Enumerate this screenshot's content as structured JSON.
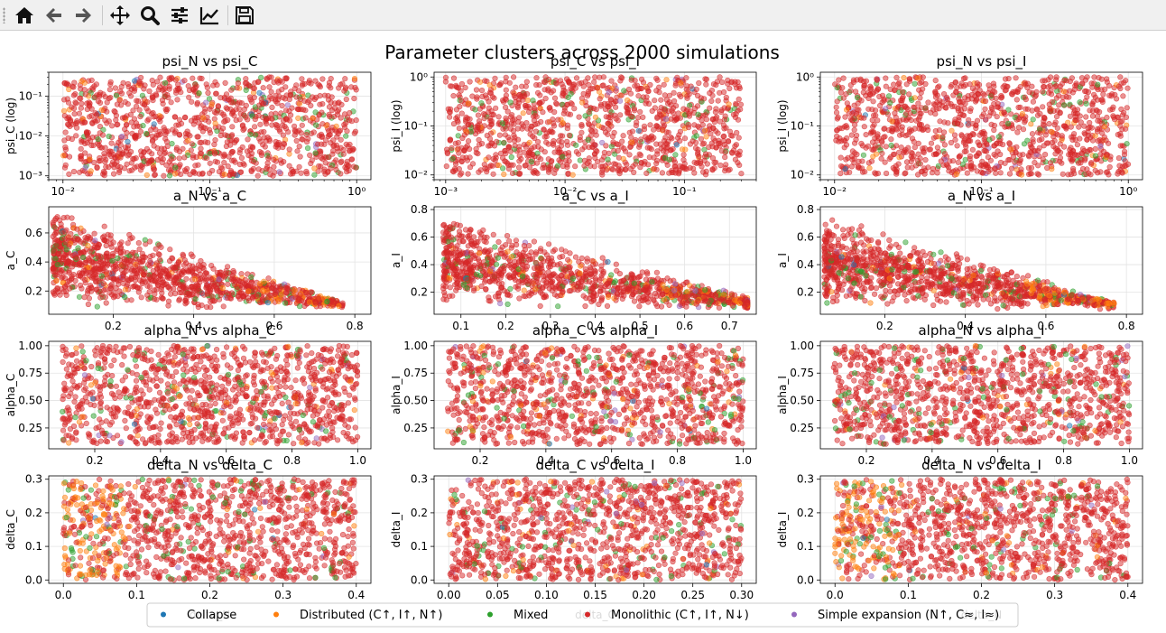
{
  "toolbar": {
    "buttons": [
      {
        "name": "home-button",
        "icon": "home-icon"
      },
      {
        "name": "back-button",
        "icon": "arrow-left-icon"
      },
      {
        "name": "forward-button",
        "icon": "arrow-right-icon"
      },
      {
        "name": "pan-button",
        "icon": "move-icon"
      },
      {
        "name": "zoom-button",
        "icon": "magnifier-icon"
      },
      {
        "name": "configure-subplots-button",
        "icon": "sliders-icon"
      },
      {
        "name": "edit-axes-button",
        "icon": "line-chart-icon"
      },
      {
        "name": "save-button",
        "icon": "floppy-disk-icon"
      }
    ]
  },
  "figure": {
    "title": "Parameter clusters across 2000 simulations",
    "legend": [
      {
        "label": "Collapse",
        "color": "#1f77b4"
      },
      {
        "label": "Distributed (C↑, I↑, N↑)",
        "color": "#ff7f0e"
      },
      {
        "label": "Mixed",
        "color": "#2ca02c"
      },
      {
        "label": "Monolithic (C↑, I↑, N↓)",
        "color": "#d62728"
      },
      {
        "label": "Simple expansion (N↑, C≈, I≈)",
        "color": "#9467bd"
      }
    ]
  },
  "chart_data": [
    {
      "type": "scatter",
      "title": "psi_N vs psi_C",
      "xlabel": "",
      "ylabel": "psi_C (log)",
      "xscale": "log",
      "yscale": "log",
      "xlim": [
        0.008,
        1.25
      ],
      "ylim": [
        0.0008,
        0.4
      ],
      "xticks": [
        0.01,
        0.1,
        1
      ],
      "xticklabels": [
        "10⁻²",
        "10⁻¹",
        "10⁰"
      ],
      "yticks": [
        0.001,
        0.01,
        0.1
      ],
      "yticklabels": [
        "10⁻³",
        "10⁻²",
        "10⁻¹"
      ],
      "x_range": [
        0.01,
        1
      ],
      "y_range": [
        0.001,
        0.3
      ],
      "grid": true
    },
    {
      "type": "scatter",
      "title": "psi_C vs psi_I",
      "xlabel": "",
      "ylabel": "psi_I (log)",
      "xscale": "log",
      "yscale": "log",
      "xlim": [
        0.0008,
        0.4
      ],
      "ylim": [
        0.008,
        1.25
      ],
      "xticks": [
        0.001,
        0.01,
        0.1
      ],
      "xticklabels": [
        "10⁻³",
        "10⁻²",
        "10⁻¹"
      ],
      "yticks": [
        0.01,
        0.1,
        1
      ],
      "yticklabels": [
        "10⁻²",
        "10⁻¹",
        "10⁰"
      ],
      "x_range": [
        0.001,
        0.3
      ],
      "y_range": [
        0.01,
        1
      ],
      "grid": true
    },
    {
      "type": "scatter",
      "title": "psi_N vs psi_I",
      "xlabel": "",
      "ylabel": "psi_I (log)",
      "xscale": "log",
      "yscale": "log",
      "xlim": [
        0.008,
        1.25
      ],
      "ylim": [
        0.008,
        1.25
      ],
      "xticks": [
        0.01,
        0.1,
        1
      ],
      "xticklabels": [
        "10⁻²",
        "10⁻¹",
        "10⁰"
      ],
      "yticks": [
        0.01,
        0.1,
        1
      ],
      "yticklabels": [
        "10⁻²",
        "10⁻¹",
        "10⁰"
      ],
      "x_range": [
        0.01,
        1
      ],
      "y_range": [
        0.01,
        1
      ],
      "grid": true
    },
    {
      "type": "scatter",
      "title": "a_N vs a_C",
      "xlabel": "",
      "ylabel": "a_C",
      "xscale": "linear",
      "yscale": "linear",
      "xlim": [
        0.04,
        0.84
      ],
      "ylim": [
        0.04,
        0.78
      ],
      "xticks": [
        0.2,
        0.4,
        0.6,
        0.8
      ],
      "xticklabels": [
        "0.2",
        "0.4",
        "0.6",
        "0.8"
      ],
      "yticks": [
        0.2,
        0.4,
        0.6
      ],
      "yticklabels": [
        "0.2",
        "0.4",
        "0.6"
      ],
      "shape": "triangle",
      "x_range": [
        0.05,
        0.82
      ],
      "y_range": [
        0.07,
        0.76
      ],
      "grid": true
    },
    {
      "type": "scatter",
      "title": "a_C vs a_I",
      "xlabel": "",
      "ylabel": "a_I",
      "xscale": "linear",
      "yscale": "linear",
      "xlim": [
        0.04,
        0.76
      ],
      "ylim": [
        0.04,
        0.82
      ],
      "xticks": [
        0.1,
        0.2,
        0.3,
        0.4,
        0.5,
        0.6,
        0.7
      ],
      "xticklabels": [
        "0.1",
        "0.2",
        "0.3",
        "0.4",
        "0.5",
        "0.6",
        "0.7"
      ],
      "yticks": [
        0.2,
        0.4,
        0.6,
        0.8
      ],
      "yticklabels": [
        "0.2",
        "0.4",
        "0.6",
        "0.8"
      ],
      "shape": "triangle",
      "x_range": [
        0.06,
        0.74
      ],
      "y_range": [
        0.07,
        0.79
      ],
      "grid": true
    },
    {
      "type": "scatter",
      "title": "a_N vs a_I",
      "xlabel": "",
      "ylabel": "a_I",
      "xscale": "linear",
      "yscale": "linear",
      "xlim": [
        0.04,
        0.84
      ],
      "ylim": [
        0.04,
        0.82
      ],
      "xticks": [
        0.2,
        0.4,
        0.6,
        0.8
      ],
      "xticklabels": [
        "0.2",
        "0.4",
        "0.6",
        "0.8"
      ],
      "yticks": [
        0.2,
        0.4,
        0.6,
        0.8
      ],
      "yticklabels": [
        "0.2",
        "0.4",
        "0.6",
        "0.8"
      ],
      "shape": "triangle",
      "x_range": [
        0.05,
        0.82
      ],
      "y_range": [
        0.07,
        0.79
      ],
      "grid": true
    },
    {
      "type": "scatter",
      "title": "alpha_N vs alpha_C",
      "xlabel": "",
      "ylabel": "alpha_C",
      "xscale": "linear",
      "yscale": "linear",
      "xlim": [
        0.06,
        1.04
      ],
      "ylim": [
        0.06,
        1.04
      ],
      "xticks": [
        0.2,
        0.4,
        0.6,
        0.8,
        1.0
      ],
      "xticklabels": [
        "0.2",
        "0.4",
        "0.6",
        "0.8",
        "1.0"
      ],
      "yticks": [
        0.25,
        0.5,
        0.75,
        1.0
      ],
      "yticklabels": [
        "0.25",
        "0.50",
        "0.75",
        "1.00"
      ],
      "x_range": [
        0.1,
        1
      ],
      "y_range": [
        0.1,
        1
      ],
      "grid": true
    },
    {
      "type": "scatter",
      "title": "alpha_C vs alpha_I",
      "xlabel": "",
      "ylabel": "alpha_I",
      "xscale": "linear",
      "yscale": "linear",
      "xlim": [
        0.06,
        1.04
      ],
      "ylim": [
        0.06,
        1.04
      ],
      "xticks": [
        0.2,
        0.4,
        0.6,
        0.8,
        1.0
      ],
      "xticklabels": [
        "0.2",
        "0.4",
        "0.6",
        "0.8",
        "1.0"
      ],
      "yticks": [
        0.25,
        0.5,
        0.75,
        1.0
      ],
      "yticklabels": [
        "0.25",
        "0.50",
        "0.75",
        "1.00"
      ],
      "x_range": [
        0.1,
        1
      ],
      "y_range": [
        0.1,
        1
      ],
      "grid": true
    },
    {
      "type": "scatter",
      "title": "alpha_N vs alpha_I",
      "xlabel": "",
      "ylabel": "alpha_I",
      "xscale": "linear",
      "yscale": "linear",
      "xlim": [
        0.06,
        1.04
      ],
      "ylim": [
        0.06,
        1.04
      ],
      "xticks": [
        0.2,
        0.4,
        0.6,
        0.8,
        1.0
      ],
      "xticklabels": [
        "0.2",
        "0.4",
        "0.6",
        "0.8",
        "1.0"
      ],
      "yticks": [
        0.25,
        0.5,
        0.75,
        1.0
      ],
      "yticklabels": [
        "0.25",
        "0.50",
        "0.75",
        "1.00"
      ],
      "x_range": [
        0.1,
        1
      ],
      "y_range": [
        0.1,
        1
      ],
      "grid": true
    },
    {
      "type": "scatter",
      "title": "delta_N vs delta_C",
      "xlabel": "delta_N",
      "ylabel": "delta_C",
      "xscale": "linear",
      "yscale": "linear",
      "xlim": [
        -0.02,
        0.42
      ],
      "ylim": [
        -0.01,
        0.31
      ],
      "xticks": [
        0,
        0.1,
        0.2,
        0.3,
        0.4
      ],
      "xticklabels": [
        "0.0",
        "0.1",
        "0.2",
        "0.3",
        "0.4"
      ],
      "yticks": [
        0,
        0.1,
        0.2,
        0.3
      ],
      "yticklabels": [
        "0.0",
        "0.1",
        "0.2",
        "0.3"
      ],
      "x_range": [
        0,
        0.4
      ],
      "y_range": [
        0,
        0.3
      ],
      "grid": true
    },
    {
      "type": "scatter",
      "title": "delta_C vs delta_I",
      "xlabel": "delta_C",
      "ylabel": "delta_I",
      "xscale": "linear",
      "yscale": "linear",
      "xlim": [
        -0.015,
        0.315
      ],
      "ylim": [
        -0.01,
        0.31
      ],
      "xticks": [
        0,
        0.05,
        0.1,
        0.15,
        0.2,
        0.25,
        0.3
      ],
      "xticklabels": [
        "0.00",
        "0.05",
        "0.10",
        "0.15",
        "0.20",
        "0.25",
        "0.30"
      ],
      "yticks": [
        0,
        0.1,
        0.2,
        0.3
      ],
      "yticklabels": [
        "0.0",
        "0.1",
        "0.2",
        "0.3"
      ],
      "x_range": [
        0,
        0.3
      ],
      "y_range": [
        0,
        0.3
      ],
      "grid": true
    },
    {
      "type": "scatter",
      "title": "delta_N vs delta_I",
      "xlabel": "delta_N",
      "ylabel": "delta_I",
      "xscale": "linear",
      "yscale": "linear",
      "xlim": [
        -0.02,
        0.42
      ],
      "ylim": [
        -0.01,
        0.31
      ],
      "xticks": [
        0,
        0.1,
        0.2,
        0.3,
        0.4
      ],
      "xticklabels": [
        "0.0",
        "0.1",
        "0.2",
        "0.3",
        "0.4"
      ],
      "yticks": [
        0,
        0.1,
        0.2,
        0.3
      ],
      "yticklabels": [
        "0.0",
        "0.1",
        "0.2",
        "0.3"
      ],
      "x_range": [
        0,
        0.4
      ],
      "y_range": [
        0,
        0.3
      ],
      "grid": true
    }
  ]
}
